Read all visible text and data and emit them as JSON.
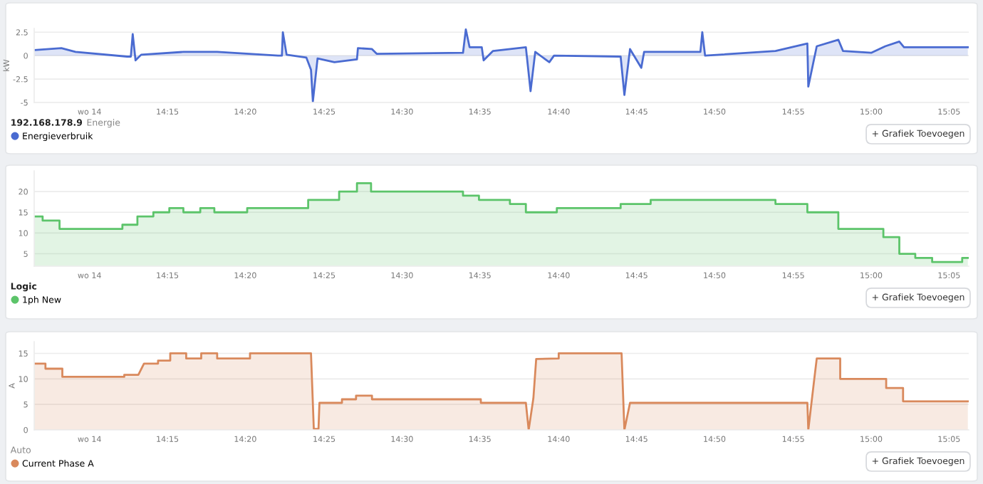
{
  "chart_data": [
    {
      "type": "area",
      "title": "192.168.178.9",
      "subtitle": "Energie",
      "ylabel": "kW",
      "legend": "bottom left",
      "grid": "y",
      "xlim": [
        14.108,
        15.104
      ],
      "ylim": [
        -5,
        2.9
      ],
      "yticks": [
        -5,
        -2.5,
        0,
        2.5
      ],
      "xticks": [
        {
          "value": 14.167,
          "label": "wo 14"
        },
        {
          "value": 14.25,
          "label": "14:15"
        },
        {
          "value": 14.333,
          "label": "14:20"
        },
        {
          "value": 14.417,
          "label": "14:25"
        },
        {
          "value": 14.5,
          "label": "14:30"
        },
        {
          "value": 14.583,
          "label": "14:35"
        },
        {
          "value": 14.667,
          "label": "14:40"
        },
        {
          "value": 14.75,
          "label": "14:45"
        },
        {
          "value": 14.833,
          "label": "14:50"
        },
        {
          "value": 14.917,
          "label": "14:55"
        },
        {
          "value": 15.0,
          "label": "15:00"
        },
        {
          "value": 15.083,
          "label": "15:05"
        }
      ],
      "annotations": [
        "+ Grafiek Toevoegen"
      ],
      "series": [
        {
          "name": "Energieverbruik",
          "color": "#4a6bd1",
          "x": [
            14.108,
            14.137,
            14.152,
            14.207,
            14.211,
            14.213,
            14.216,
            14.222,
            14.267,
            14.303,
            14.368,
            14.372,
            14.373,
            14.377,
            14.398,
            14.403,
            14.405,
            14.41,
            14.428,
            14.452,
            14.453,
            14.468,
            14.473,
            14.565,
            14.568,
            14.572,
            14.585,
            14.587,
            14.597,
            14.632,
            14.637,
            14.642,
            14.657,
            14.662,
            14.733,
            14.737,
            14.743,
            14.755,
            14.758,
            14.818,
            14.82,
            14.823,
            14.898,
            14.932,
            14.933,
            14.942,
            14.965,
            14.97,
            15.0,
            15.015,
            15.03,
            15.035,
            15.103
          ],
          "values": [
            0.6,
            0.8,
            0.4,
            -0.1,
            -0.1,
            2.3,
            -0.5,
            0.1,
            0.4,
            0.4,
            0.0,
            0.0,
            2.5,
            0.1,
            -0.2,
            -1.5,
            -4.9,
            -0.3,
            -0.7,
            -0.4,
            0.8,
            0.7,
            0.2,
            0.3,
            2.8,
            0.9,
            0.9,
            -0.5,
            0.5,
            0.9,
            -3.8,
            0.4,
            -0.7,
            0.0,
            -0.1,
            -4.2,
            0.7,
            -1.3,
            0.4,
            0.4,
            2.5,
            0.0,
            0.5,
            1.3,
            -3.3,
            1.0,
            1.7,
            0.5,
            0.3,
            1.0,
            1.5,
            0.9,
            0.9
          ]
        }
      ]
    },
    {
      "type": "area",
      "title": "Logic",
      "legend": "bottom left",
      "grid": "y",
      "xlim": [
        14.108,
        15.104
      ],
      "ylim": [
        2,
        25
      ],
      "yticks": [
        5,
        10,
        15,
        20
      ],
      "xticks": [
        {
          "value": 14.167,
          "label": "wo 14"
        },
        {
          "value": 14.25,
          "label": "14:15"
        },
        {
          "value": 14.333,
          "label": "14:20"
        },
        {
          "value": 14.417,
          "label": "14:25"
        },
        {
          "value": 14.5,
          "label": "14:30"
        },
        {
          "value": 14.583,
          "label": "14:35"
        },
        {
          "value": 14.667,
          "label": "14:40"
        },
        {
          "value": 14.75,
          "label": "14:45"
        },
        {
          "value": 14.833,
          "label": "14:50"
        },
        {
          "value": 14.917,
          "label": "14:55"
        },
        {
          "value": 15.0,
          "label": "15:00"
        },
        {
          "value": 15.083,
          "label": "15:05"
        }
      ],
      "annotations": [
        "+ Grafiek Toevoegen"
      ],
      "series": [
        {
          "name": "1ph New",
          "color": "#5cc46a",
          "x": [
            14.108,
            14.117,
            14.117,
            14.135,
            14.135,
            14.202,
            14.202,
            14.218,
            14.218,
            14.235,
            14.235,
            14.252,
            14.252,
            14.267,
            14.267,
            14.285,
            14.285,
            14.3,
            14.3,
            14.335,
            14.335,
            14.4,
            14.4,
            14.433,
            14.433,
            14.452,
            14.452,
            14.467,
            14.467,
            14.565,
            14.565,
            14.582,
            14.582,
            14.615,
            14.615,
            14.632,
            14.632,
            14.665,
            14.665,
            14.733,
            14.733,
            14.765,
            14.765,
            14.898,
            14.898,
            14.932,
            14.932,
            14.965,
            14.965,
            15.013,
            15.013,
            15.03,
            15.03,
            15.047,
            15.047,
            15.065,
            15.065,
            15.097,
            15.097,
            15.103
          ],
          "values": [
            14,
            14,
            13,
            13,
            11,
            11,
            12,
            12,
            14,
            14,
            15,
            15,
            16,
            16,
            15,
            15,
            16,
            16,
            15,
            15,
            16,
            16,
            18,
            18,
            20,
            20,
            22,
            22,
            20,
            20,
            19,
            19,
            18,
            18,
            17,
            17,
            15,
            15,
            16,
            16,
            17,
            17,
            18,
            18,
            17,
            17,
            15,
            15,
            11,
            11,
            9,
            9,
            5,
            5,
            4,
            4,
            3,
            3,
            4,
            4
          ]
        }
      ]
    },
    {
      "type": "area",
      "subtitle": "Auto",
      "ylabel": "A",
      "legend": "bottom left",
      "grid": "y",
      "xlim": [
        14.108,
        15.104
      ],
      "ylim": [
        0,
        17.3
      ],
      "yticks": [
        0,
        5,
        10,
        15
      ],
      "xticks": [
        {
          "value": 14.167,
          "label": "wo 14"
        },
        {
          "value": 14.25,
          "label": "14:15"
        },
        {
          "value": 14.333,
          "label": "14:20"
        },
        {
          "value": 14.417,
          "label": "14:25"
        },
        {
          "value": 14.5,
          "label": "14:30"
        },
        {
          "value": 14.583,
          "label": "14:35"
        },
        {
          "value": 14.667,
          "label": "14:40"
        },
        {
          "value": 14.75,
          "label": "14:45"
        },
        {
          "value": 14.833,
          "label": "14:50"
        },
        {
          "value": 14.917,
          "label": "14:55"
        },
        {
          "value": 15.0,
          "label": "15:00"
        },
        {
          "value": 15.083,
          "label": "15:05"
        }
      ],
      "annotations": [
        "+ Grafiek Toevoegen"
      ],
      "series": [
        {
          "name": "Current Phase A",
          "color": "#d9895c",
          "x": [
            14.108,
            14.12,
            14.12,
            14.138,
            14.138,
            14.204,
            14.204,
            14.219,
            14.225,
            14.24,
            14.24,
            14.253,
            14.253,
            14.27,
            14.27,
            14.286,
            14.286,
            14.303,
            14.303,
            14.338,
            14.338,
            14.403,
            14.406,
            14.411,
            14.412,
            14.436,
            14.436,
            14.451,
            14.451,
            14.468,
            14.468,
            14.584,
            14.584,
            14.632,
            14.635,
            14.64,
            14.643,
            14.667,
            14.667,
            14.734,
            14.737,
            14.743,
            14.932,
            14.933,
            14.939,
            14.942,
            14.967,
            14.967,
            15.016,
            15.016,
            15.034,
            15.034,
            15.103
          ],
          "values": [
            13,
            13,
            12,
            12,
            10.4,
            10.4,
            10.8,
            10.8,
            13,
            13,
            13.6,
            13.6,
            15,
            15,
            14,
            14,
            15,
            15,
            14,
            14,
            15,
            15,
            0.2,
            0.2,
            5.3,
            5.3,
            6,
            6,
            6.7,
            6.7,
            6,
            6,
            5.3,
            5.3,
            0,
            6.2,
            13.9,
            14,
            15,
            15,
            0,
            5.3,
            5.3,
            0,
            9.4,
            14,
            14,
            10,
            10,
            8.2,
            8.2,
            5.6,
            5.6
          ]
        }
      ]
    }
  ]
}
